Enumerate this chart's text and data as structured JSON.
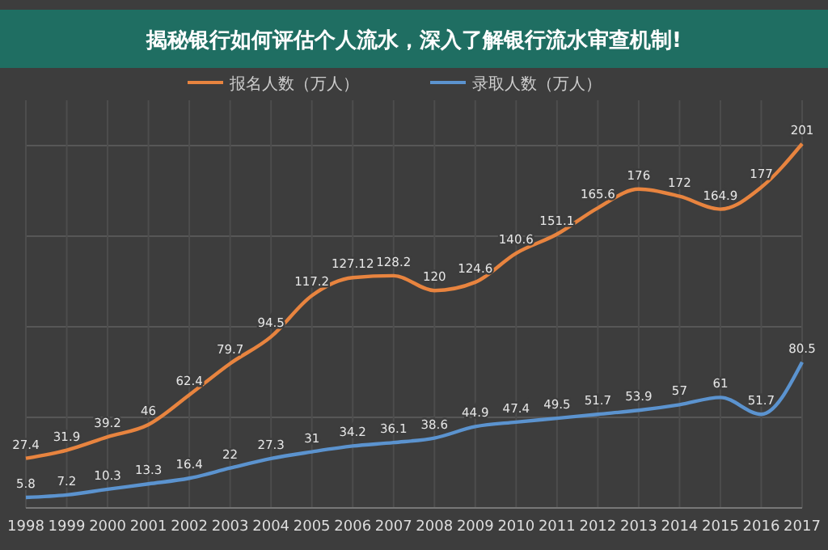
{
  "chart_data": {
    "type": "line",
    "title": "揭秘银行如何评估个人流水，深入了解银行流水审查机制!",
    "categories": [
      "1998",
      "1999",
      "2000",
      "2001",
      "2002",
      "2003",
      "2004",
      "2005",
      "2006",
      "2007",
      "2008",
      "2009",
      "2010",
      "2011",
      "2012",
      "2013",
      "2014",
      "2015",
      "2016",
      "2017"
    ],
    "series": [
      {
        "name": "报名人数（万人）",
        "color": "#e8843f",
        "values": [
          27.4,
          31.9,
          39.2,
          46,
          62.4,
          79.7,
          94.5,
          117.2,
          127.12,
          128.2,
          120,
          124.6,
          140.6,
          151.1,
          165.6,
          176,
          172,
          164.9,
          177,
          201
        ]
      },
      {
        "name": "录取人数（万人）",
        "color": "#5b93cf",
        "values": [
          5.8,
          7.2,
          10.3,
          13.3,
          16.4,
          22,
          27.3,
          31,
          34.2,
          36.1,
          38.6,
          44.9,
          47.4,
          49.5,
          51.7,
          53.9,
          57,
          61,
          51.7,
          80.5
        ]
      }
    ],
    "ylim": [
      0,
      225
    ],
    "yticks": [
      {
        "value": 0,
        "label": null
      },
      {
        "value": 50,
        "label": null
      },
      {
        "value": 100,
        "label": null
      },
      {
        "value": 150,
        "label": null
      },
      {
        "value": 200,
        "label": null
      }
    ],
    "grid": true,
    "legend": "top",
    "tick_labels": "x",
    "data_labels": true,
    "marker": "none",
    "line_style": "solid"
  }
}
